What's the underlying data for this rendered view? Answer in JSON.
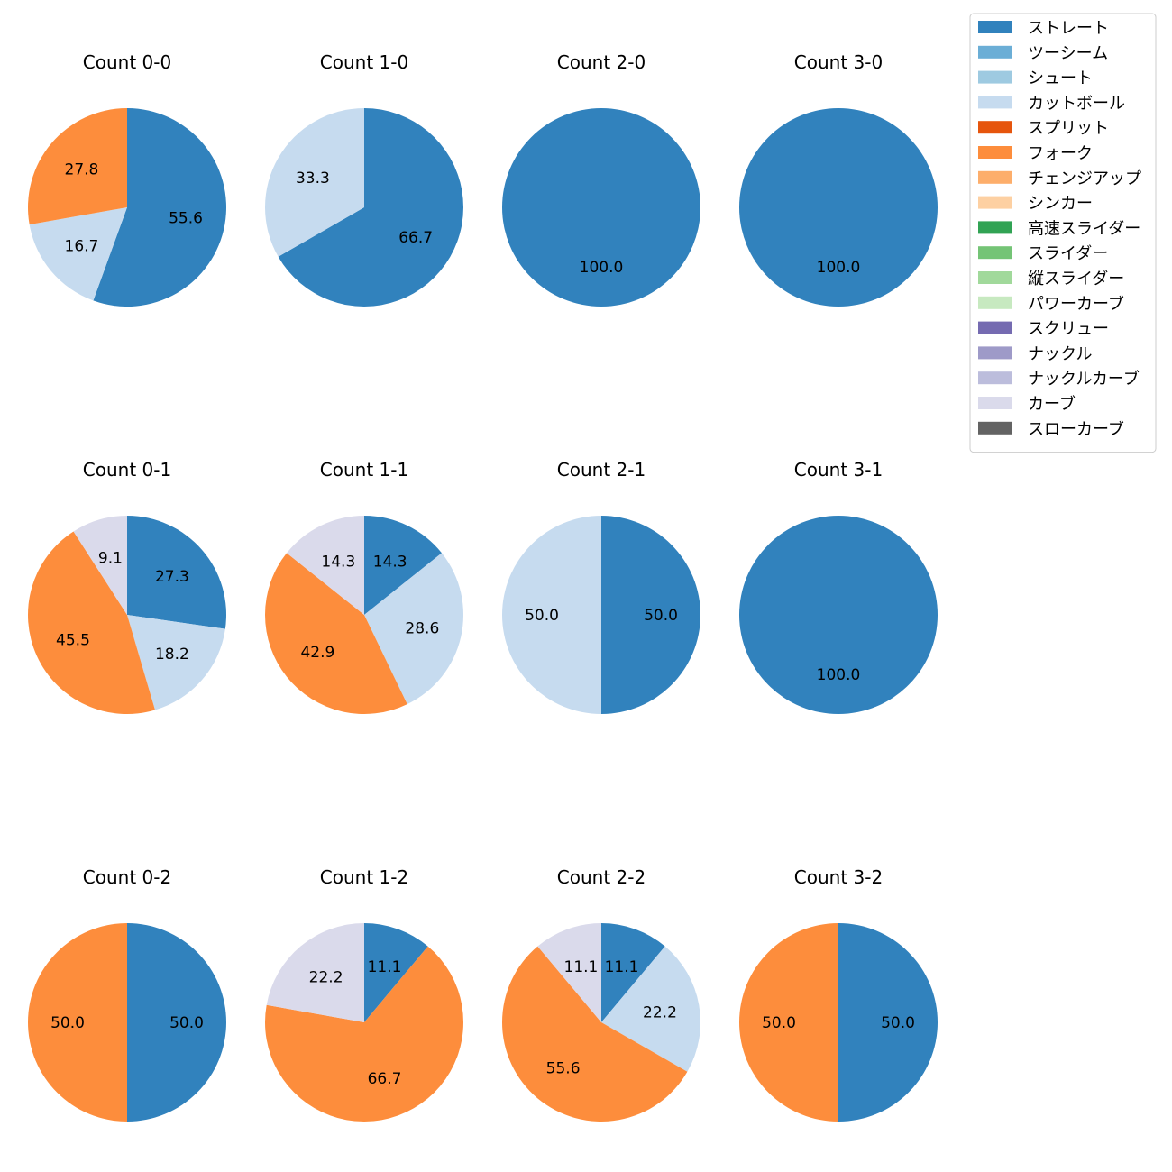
{
  "legend": {
    "entries": [
      {
        "name": "ストレート",
        "color": "#3182bd"
      },
      {
        "name": "ツーシーム",
        "color": "#6baed6"
      },
      {
        "name": "シュート",
        "color": "#9ecae1"
      },
      {
        "name": "カットボール",
        "color": "#c6dbef"
      },
      {
        "name": "スプリット",
        "color": "#e6550d"
      },
      {
        "name": "フォーク",
        "color": "#fd8d3c"
      },
      {
        "name": "チェンジアップ",
        "color": "#fdae6b"
      },
      {
        "name": "シンカー",
        "color": "#fdd0a2"
      },
      {
        "name": "高速スライダー",
        "color": "#31a354"
      },
      {
        "name": "スライダー",
        "color": "#74c476"
      },
      {
        "name": "縦スライダー",
        "color": "#a1d99b"
      },
      {
        "name": "パワーカーブ",
        "color": "#c7e9c0"
      },
      {
        "name": "スクリュー",
        "color": "#756bb1"
      },
      {
        "name": "ナックル",
        "color": "#9e9ac8"
      },
      {
        "name": "ナックルカーブ",
        "color": "#bcbddc"
      },
      {
        "name": "カーブ",
        "color": "#dadaeb"
      },
      {
        "name": "スローカーブ",
        "color": "#636363"
      }
    ]
  },
  "chart_data": [
    {
      "type": "pie",
      "title": "Count 0-0",
      "slices": [
        {
          "category": "ストレート",
          "value": 55.6
        },
        {
          "category": "カットボール",
          "value": 16.7
        },
        {
          "category": "フォーク",
          "value": 27.8
        }
      ]
    },
    {
      "type": "pie",
      "title": "Count 1-0",
      "slices": [
        {
          "category": "ストレート",
          "value": 66.7
        },
        {
          "category": "カットボール",
          "value": 33.3
        }
      ]
    },
    {
      "type": "pie",
      "title": "Count 2-0",
      "slices": [
        {
          "category": "ストレート",
          "value": 100.0
        }
      ]
    },
    {
      "type": "pie",
      "title": "Count 3-0",
      "slices": [
        {
          "category": "ストレート",
          "value": 100.0
        }
      ]
    },
    {
      "type": "pie",
      "title": "Count 0-1",
      "slices": [
        {
          "category": "ストレート",
          "value": 27.3
        },
        {
          "category": "カットボール",
          "value": 18.2
        },
        {
          "category": "フォーク",
          "value": 45.5
        },
        {
          "category": "カーブ",
          "value": 9.1
        }
      ]
    },
    {
      "type": "pie",
      "title": "Count 1-1",
      "slices": [
        {
          "category": "ストレート",
          "value": 14.3
        },
        {
          "category": "カットボール",
          "value": 28.6
        },
        {
          "category": "フォーク",
          "value": 42.9
        },
        {
          "category": "カーブ",
          "value": 14.3
        }
      ]
    },
    {
      "type": "pie",
      "title": "Count 2-1",
      "slices": [
        {
          "category": "ストレート",
          "value": 50.0
        },
        {
          "category": "カットボール",
          "value": 50.0
        }
      ]
    },
    {
      "type": "pie",
      "title": "Count 3-1",
      "slices": [
        {
          "category": "ストレート",
          "value": 100.0
        }
      ]
    },
    {
      "type": "pie",
      "title": "Count 0-2",
      "slices": [
        {
          "category": "ストレート",
          "value": 50.0
        },
        {
          "category": "フォーク",
          "value": 50.0
        }
      ]
    },
    {
      "type": "pie",
      "title": "Count 1-2",
      "slices": [
        {
          "category": "ストレート",
          "value": 11.1
        },
        {
          "category": "フォーク",
          "value": 66.7
        },
        {
          "category": "カーブ",
          "value": 22.2
        }
      ]
    },
    {
      "type": "pie",
      "title": "Count 2-2",
      "slices": [
        {
          "category": "ストレート",
          "value": 11.1
        },
        {
          "category": "カットボール",
          "value": 22.2
        },
        {
          "category": "フォーク",
          "value": 55.6
        },
        {
          "category": "カーブ",
          "value": 11.1
        }
      ]
    },
    {
      "type": "pie",
      "title": "Count 3-2",
      "slices": [
        {
          "category": "ストレート",
          "value": 50.0
        },
        {
          "category": "フォーク",
          "value": 50.0
        }
      ]
    }
  ]
}
